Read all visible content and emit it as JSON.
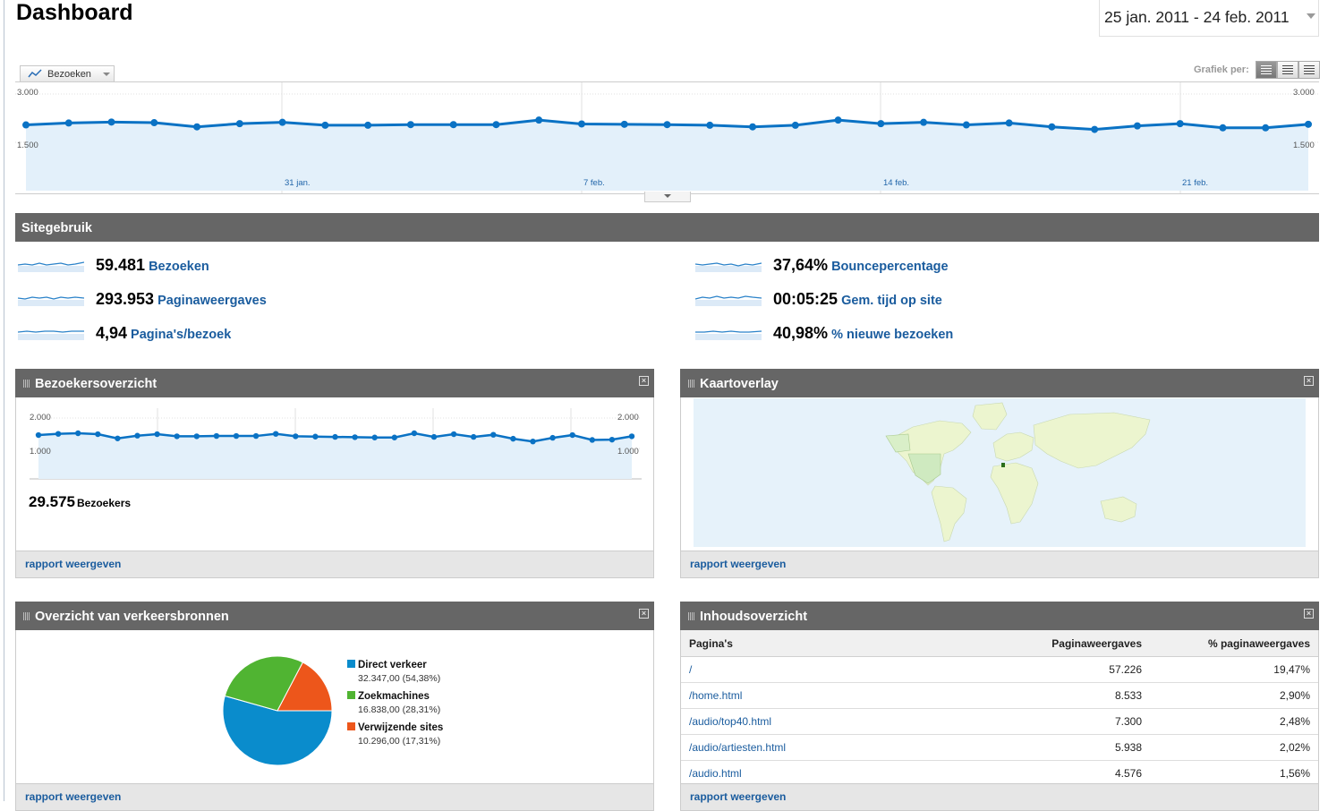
{
  "header": {
    "title": "Dashboard",
    "date_range": "25 jan. 2011 - 24 feb. 2011"
  },
  "main_chart": {
    "metric_label": "Bezoeken",
    "view_label": "Grafiek per:",
    "y_top_label": "3.000",
    "y_mid_label": "1.500",
    "date_labels": [
      "31 jan.",
      "7 feb.",
      "14 feb.",
      "21 feb."
    ],
    "colors": {
      "line": "#0a72c4",
      "fill": "#e3f0fa"
    }
  },
  "chart_data": [
    {
      "type": "area",
      "ylabel": "Bezoeken",
      "ylim": [
        0,
        3000
      ],
      "x": [
        "25 jan.",
        "26 jan.",
        "27 jan.",
        "28 jan.",
        "29 jan.",
        "30 jan.",
        "31 jan.",
        "1 feb.",
        "2 feb.",
        "3 feb.",
        "4 feb.",
        "5 feb.",
        "6 feb.",
        "7 feb.",
        "8 feb.",
        "9 feb.",
        "10 feb.",
        "11 feb.",
        "12 feb.",
        "13 feb.",
        "14 feb.",
        "15 feb.",
        "16 feb.",
        "17 feb.",
        "18 feb.",
        "19 feb.",
        "20 feb.",
        "21 feb.",
        "22 feb.",
        "23 feb.",
        "24 feb."
      ],
      "series": [
        {
          "values": [
            2040,
            2100,
            2130,
            2110,
            1980,
            2080,
            2120,
            2030,
            2030,
            2050,
            2050,
            2050,
            2190,
            2070,
            2060,
            2050,
            2030,
            1980,
            2030,
            2190,
            2080,
            2120,
            2040,
            2100,
            1980,
            1900,
            2010,
            2080,
            1950,
            1950,
            2060
          ]
        }
      ]
    },
    {
      "type": "area",
      "ylabel": "Bezoekers",
      "ylim": [
        0,
        2000
      ],
      "series": [
        {
          "values": [
            1440,
            1480,
            1500,
            1470,
            1330,
            1420,
            1470,
            1400,
            1400,
            1410,
            1410,
            1410,
            1480,
            1400,
            1390,
            1380,
            1370,
            1360,
            1360,
            1500,
            1380,
            1470,
            1380,
            1450,
            1320,
            1230,
            1350,
            1440,
            1280,
            1290,
            1400
          ]
        }
      ]
    },
    {
      "type": "pie",
      "categories": [
        "Direct verkeer",
        "Zoekmachines",
        "Verwijzende sites"
      ],
      "values": [
        54.38,
        28.31,
        17.31
      ],
      "colors": [
        "#0a8ccc",
        "#50b432",
        "#ed561b"
      ]
    },
    {
      "type": "table",
      "columns": [
        "Pagina's",
        "Paginaweergaves",
        "% paginaweergaves"
      ],
      "rows": [
        [
          "/",
          "57.226",
          "19,47%"
        ],
        [
          "/home.html",
          "8.533",
          "2,90%"
        ],
        [
          "/audio/top40.html",
          "7.300",
          "2,48%"
        ],
        [
          "/audio/artiesten.html",
          "5.938",
          "2,02%"
        ],
        [
          "/audio.html",
          "4.576",
          "1,56%"
        ]
      ]
    }
  ],
  "sitegebruik": {
    "title": "Sitegebruik",
    "metrics": [
      {
        "value": "59.481",
        "label": "Bezoeken"
      },
      {
        "value": "293.953",
        "label": "Paginaweergaves"
      },
      {
        "value": "4,94",
        "label": "Pagina's/bezoek"
      },
      {
        "value": "37,64%",
        "label": "Bouncepercentage"
      },
      {
        "value": "00:05:25",
        "label": "Gem. tijd op site"
      },
      {
        "value": "40,98%",
        "label": "% nieuwe bezoeken"
      }
    ]
  },
  "bezoekersoverzicht": {
    "title": "Bezoekersoverzicht",
    "y_top_label": "2.000",
    "y_mid_label": "1.000",
    "total_value": "29.575",
    "total_label": "Bezoekers",
    "footer_link": "rapport weergeven"
  },
  "kaartoverlay": {
    "title": "Kaartoverlay",
    "footer_link": "rapport weergeven"
  },
  "verkeersbronnen": {
    "title": "Overzicht van verkeersbronnen",
    "legend": [
      {
        "name": "Direct verkeer",
        "detail": "32.347,00 (54,38%)"
      },
      {
        "name": "Zoekmachines",
        "detail": "16.838,00 (28,31%)"
      },
      {
        "name": "Verwijzende sites",
        "detail": "10.296,00 (17,31%)"
      }
    ],
    "footer_link": "rapport weergeven"
  },
  "inhoudsoverzicht": {
    "title": "Inhoudsoverzicht",
    "footer_link": "rapport weergeven"
  }
}
